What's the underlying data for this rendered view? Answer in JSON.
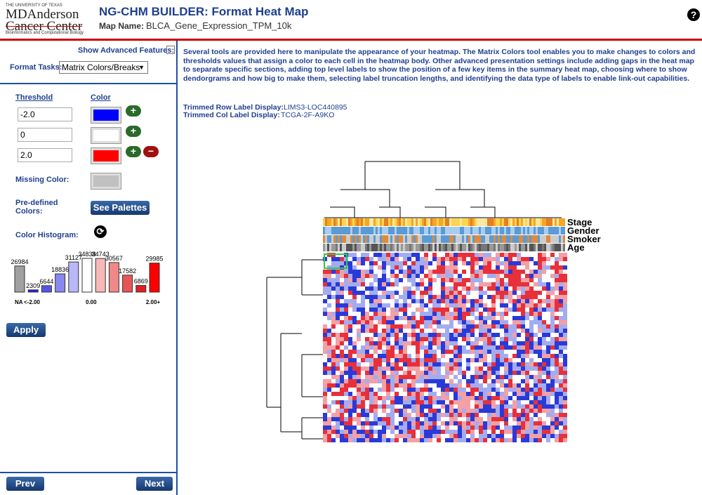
{
  "header": {
    "logo": {
      "line1": "THE UNIVERSITY OF TEXAS",
      "line2": "MDAnderson",
      "line3": "Cancer Center",
      "line4": "Bioinformatics and Computational Biology"
    },
    "title": "NG-CHM BUILDER: Format Heat Map",
    "map_name_label": "Map Name:",
    "map_name": "BLCA_Gene_Expression_TPM_10k",
    "help": "?"
  },
  "sidebar": {
    "show_advanced": "Show Advanced Features:",
    "format_tasks_label": "Format Tasks:",
    "format_task": "Matrix Colors/Breaks",
    "threshold_header": "Threshold",
    "color_header": "Color",
    "thresholds": [
      {
        "value": "-2.0",
        "color": "#0000ff"
      },
      {
        "value": "0",
        "color": "#ffffff"
      },
      {
        "value": "2.0",
        "color": "#ff0000"
      }
    ],
    "missing_color_label": "Missing Color:",
    "missing_color": "#c0c0c0",
    "predefined_label": "Pre-defined Colors:",
    "see_palettes": "See Palettes",
    "histogram_label": "Color Histogram:",
    "histogram": {
      "values": [
        26984,
        2309,
        6644,
        18836,
        31127,
        34838,
        34743,
        30567,
        17582,
        6869,
        29985
      ],
      "colors": [
        "#a0a0a0",
        "#2020e0",
        "#5555e8",
        "#8888f0",
        "#b8b8f8",
        "#ffffff",
        "#f8b8b8",
        "#f08888",
        "#e85555",
        "#e02020",
        "#ff0000"
      ],
      "labels": [
        "NA",
        "<-2.00",
        "0.00",
        "2.00+"
      ]
    },
    "apply": "Apply",
    "prev": "Prev",
    "next": "Next"
  },
  "main": {
    "description": "Several tools are provided here to manipulate the appearance of your heatmap. The Matrix Colors tool enables you to make changes to colors and thresholds values that assign a color to each cell in the heatmap body. Other advanced presentation settings include adding gaps in the heat map to separate specific sections, adding top level labels to show the position of a few key items in the summary heat map, choosing where to show dendorgrams and how big to make them, selecting label truncation lengths, and identifying the data type of labels to enable link-out capabilities.",
    "row_label_title": "Trimmed Row Label Display:",
    "row_label": "LIMS3-LOC440895",
    "col_label_title": "Trimmed Col Label Display:",
    "col_label": "TCGA-2F-A9KO",
    "covariates": [
      "Stage",
      "Gender",
      "Smoker",
      "Age"
    ]
  }
}
